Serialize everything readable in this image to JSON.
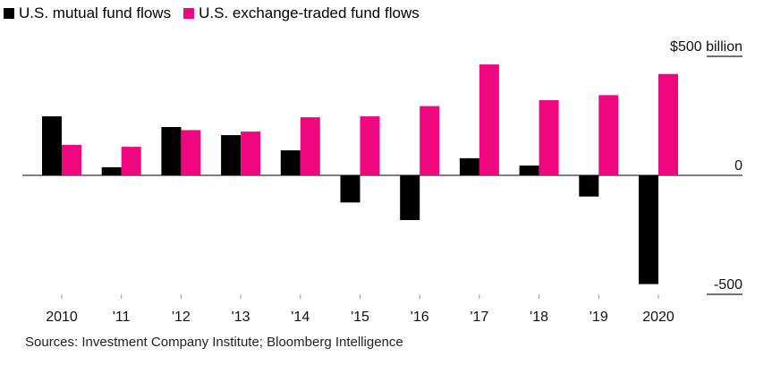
{
  "chart_data": {
    "type": "bar",
    "title": "",
    "categories": [
      "2010",
      "'11",
      "'12",
      "'13",
      "'14",
      "'15",
      "'16",
      "'17",
      "'18",
      "'19",
      "2020"
    ],
    "series": [
      {
        "name": "U.S. mutual fund flows",
        "color": "#000000",
        "values": [
          248,
          34,
          203,
          169,
          105,
          -114,
          -188,
          72,
          41,
          -89,
          -457
        ]
      },
      {
        "name": "U.S. exchange-traded fund flows",
        "color": "#f0067f",
        "values": [
          128,
          120,
          190,
          184,
          244,
          248,
          291,
          466,
          316,
          337,
          426
        ]
      }
    ],
    "ylim": [
      -500,
      500
    ],
    "y_ticks": [
      {
        "value": 500,
        "label": "$500 billion"
      },
      {
        "value": 0,
        "label": "0"
      },
      {
        "value": -500,
        "label": "-500"
      }
    ],
    "xlabel": "",
    "ylabel": "",
    "legend_position": "top-left",
    "grid": false,
    "source": "Sources: Investment Company Institute; Bloomberg Intelligence"
  }
}
